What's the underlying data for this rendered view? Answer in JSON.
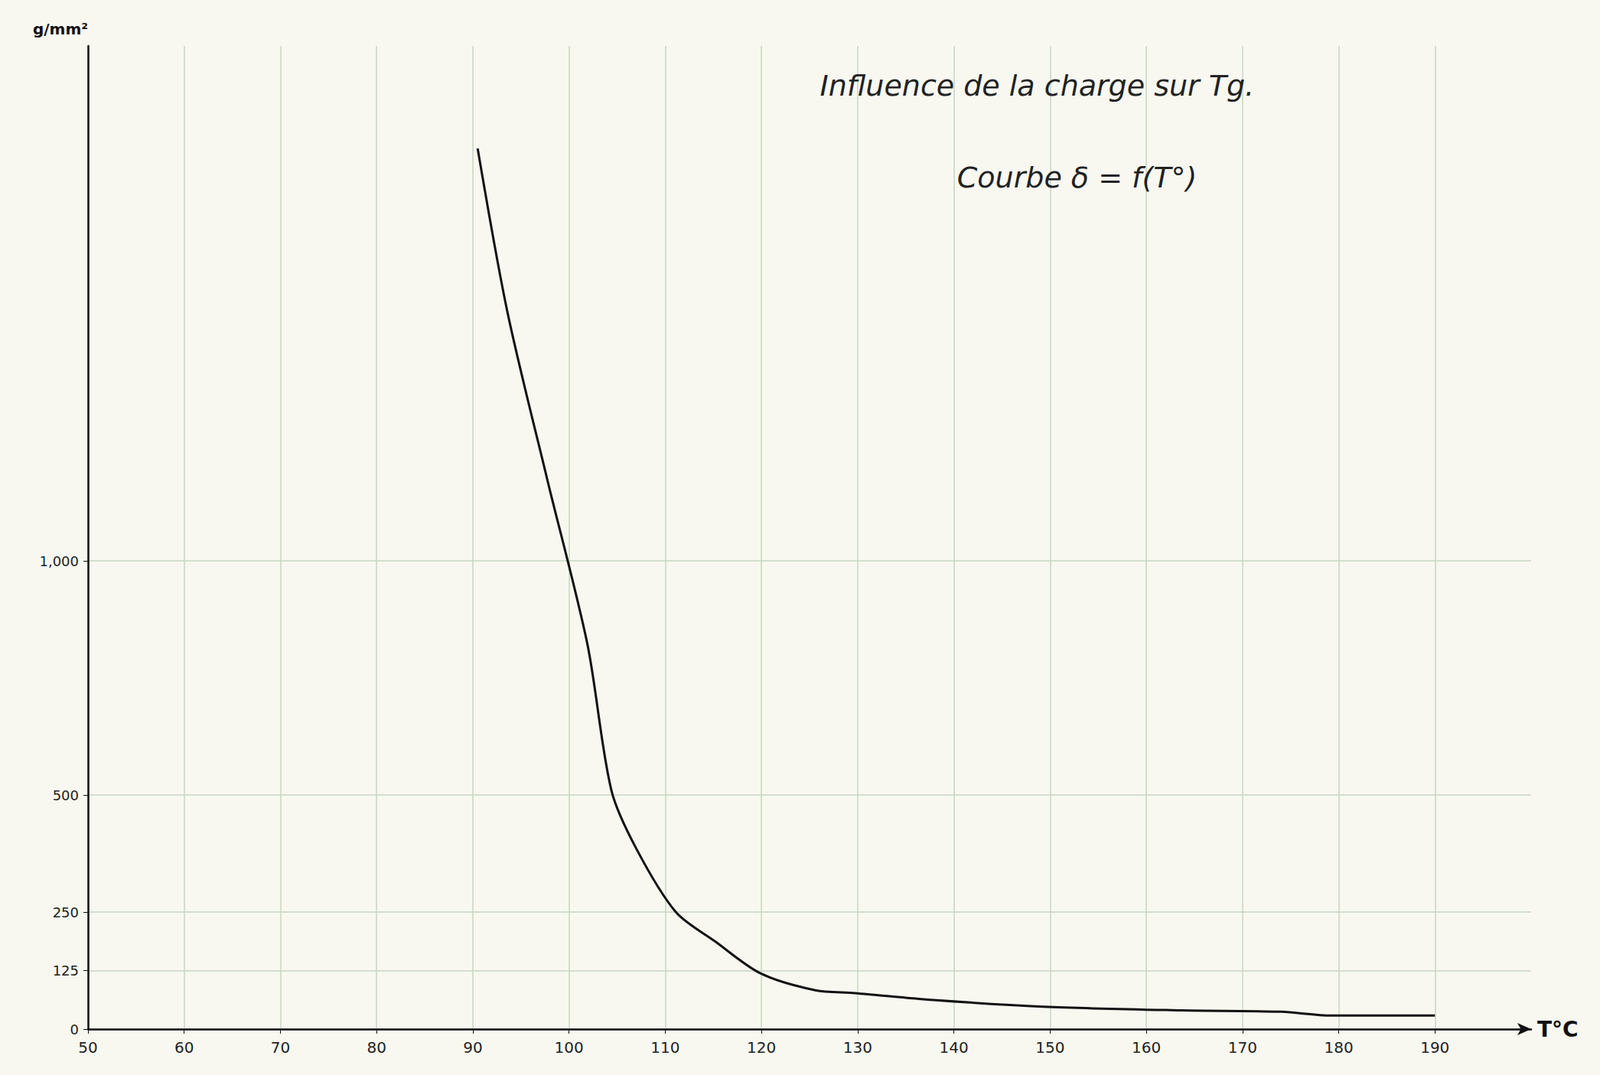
{
  "chart_data": {
    "type": "line",
    "title": "Influence de la charge sur Tg.",
    "subtitle": "Courbe δ = f(T°)",
    "x_label": "T°C",
    "y_label": "g/mm²",
    "x": [
      90.5,
      93.6,
      97.7,
      101.9,
      104.4,
      107,
      111.1,
      115.2,
      119.9,
      125.6,
      129.7,
      137.9,
      149.3,
      163.7,
      174,
      179.2,
      190
    ],
    "values": [
      1881,
      1531,
      1177,
      823,
      510,
      385,
      250,
      187,
      119,
      83,
      77,
      62,
      48,
      40,
      37,
      29,
      29
    ],
    "color": "#111111",
    "xlim": [
      50,
      200
    ],
    "xticks": [
      50,
      60,
      70,
      80,
      90,
      100,
      110,
      120,
      130,
      140,
      150,
      160,
      170,
      180,
      190
    ],
    "ylim": [
      0,
      2100
    ],
    "yticks": [
      0,
      125,
      250,
      500,
      1000
    ],
    "grid": true
  }
}
